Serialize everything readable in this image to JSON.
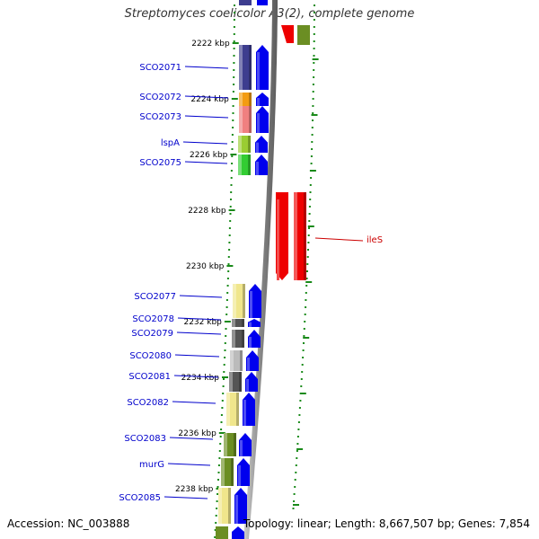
{
  "title": "Streptomyces coelicolor A3(2), complete genome",
  "accession": "Accession: NC_003888",
  "topology": "Topology: linear; Length: 8,667,507 bp; Genes: 7,854",
  "colors": {
    "gene_label": "#0000cc",
    "highlight_label": "#cc0000",
    "ruler": "#1a8a1a",
    "arrow_forward": "#0000ee",
    "arrow_highlight": "#ee0000",
    "chromosome": "#888888"
  },
  "ruler_labels": [
    "2222 kbp",
    "2224 kbp",
    "2226 kbp",
    "2228 kbp",
    "2230 kbp",
    "2232 kbp",
    "2234 kbp",
    "2236 kbp",
    "2238 kbp"
  ],
  "genes": [
    {
      "label": "SCO2071",
      "color": "#3d3d8f",
      "strand": "+"
    },
    {
      "label": "SCO2072",
      "color": "#f39c12",
      "strand": "+"
    },
    {
      "label": "SCO2073",
      "color": "#f08080",
      "strand": "+"
    },
    {
      "label": "lspA",
      "color": "#9acd32",
      "strand": "+"
    },
    {
      "label": "SCO2075",
      "color": "#32cd32",
      "strand": "+"
    },
    {
      "label": "ileS",
      "color": "#ee0000",
      "strand": "-",
      "highlight": true
    },
    {
      "label": "SCO2077",
      "color": "#f0e68c",
      "strand": "+"
    },
    {
      "label": "SCO2078",
      "color": "#555555",
      "strand": "+"
    },
    {
      "label": "SCO2079",
      "color": "#555555",
      "strand": "+"
    },
    {
      "label": "SCO2080",
      "color": "#bbbbbb",
      "strand": "+"
    },
    {
      "label": "SCO2081",
      "color": "#555555",
      "strand": "+"
    },
    {
      "label": "SCO2082",
      "color": "#f0e68c",
      "strand": "+"
    },
    {
      "label": "SCO2083",
      "color": "#6b8e23",
      "strand": "+"
    },
    {
      "label": "murG",
      "color": "#6b8e23",
      "strand": "+"
    },
    {
      "label": "SCO2085",
      "color": "#f0e68c",
      "strand": "+"
    }
  ]
}
